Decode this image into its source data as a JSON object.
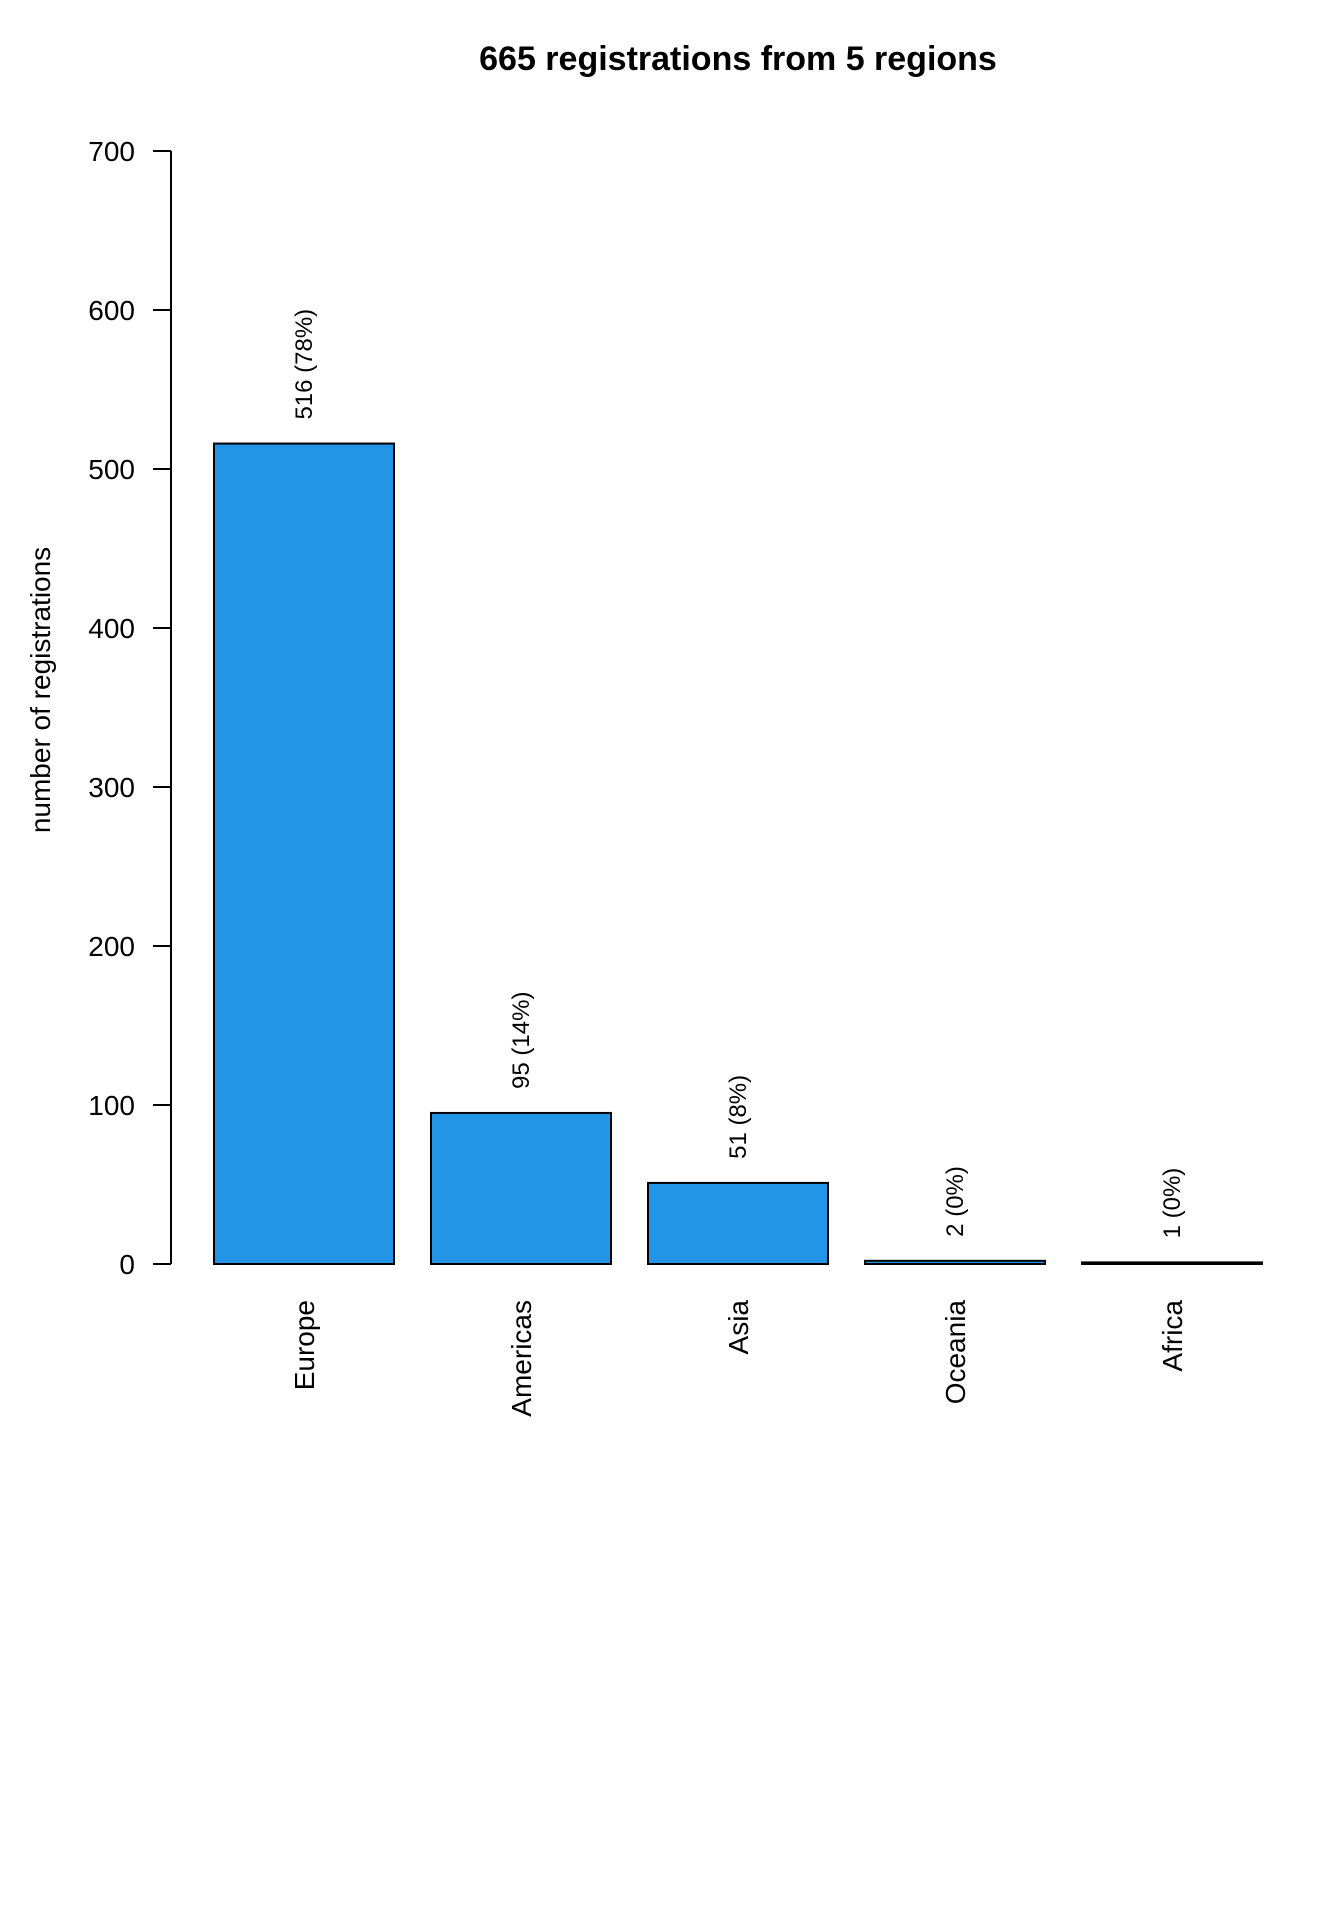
{
  "chart_data": {
    "type": "bar",
    "title": "665 registrations from 5 regions",
    "xlabel": "",
    "ylabel": "number of registrations",
    "categories": [
      "Europe",
      "Americas",
      "Asia",
      "Oceania",
      "Africa"
    ],
    "values": [
      516,
      95,
      51,
      2,
      1
    ],
    "data_labels": [
      "516 (78%)",
      "95 (14%)",
      "51 (8%)",
      "2 (0%)",
      "1 (0%)"
    ],
    "ylim": [
      0,
      700
    ],
    "yticks": [
      0,
      100,
      200,
      300,
      400,
      500,
      600,
      700
    ],
    "ytick_labels": [
      "0",
      "100",
      "200",
      "300",
      "400",
      "500",
      "600",
      "700"
    ],
    "grid": false,
    "legend": "none",
    "bar_color": "#2394E6",
    "bar_edge_color": "#000000"
  }
}
